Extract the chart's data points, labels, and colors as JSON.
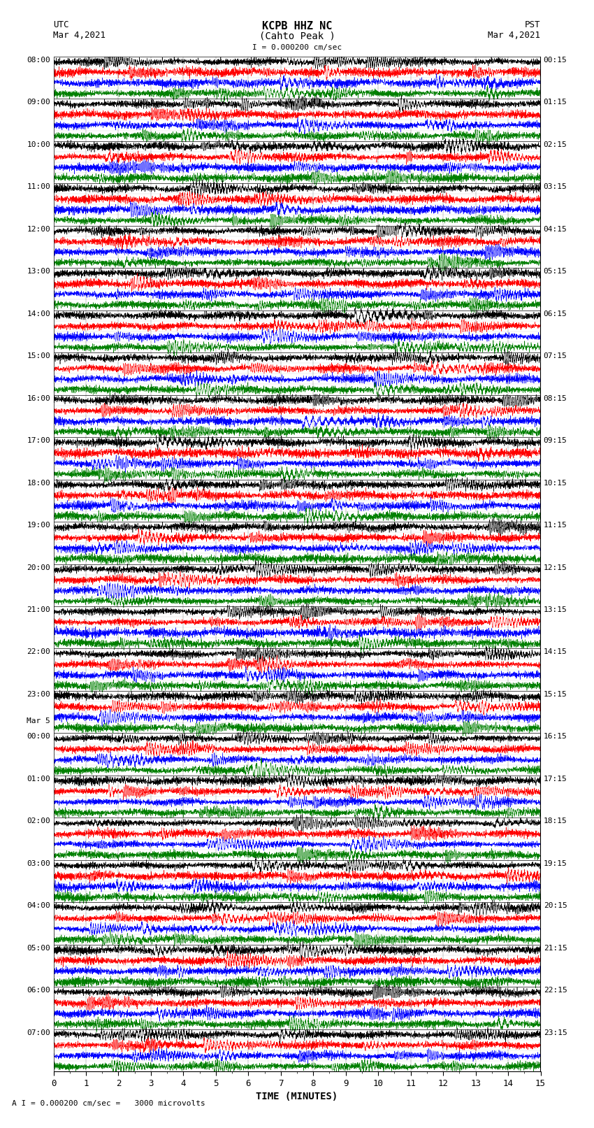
{
  "title_line1": "KCPB HHZ NC",
  "title_line2": "(Cahto Peak )",
  "scale_label": "I = 0.000200 cm/sec",
  "bottom_label": "A I = 0.000200 cm/sec =   3000 microvolts",
  "utc_label_line1": "UTC",
  "utc_label_line2": "Mar 4,2021",
  "pst_label_line1": "PST",
  "pst_label_line2": "Mar 4,2021",
  "xlabel": "TIME (MINUTES)",
  "utc_times_left": [
    "08:00",
    "09:00",
    "10:00",
    "11:00",
    "12:00",
    "13:00",
    "14:00",
    "15:00",
    "16:00",
    "17:00",
    "18:00",
    "19:00",
    "20:00",
    "21:00",
    "22:00",
    "23:00",
    "00:00",
    "01:00",
    "02:00",
    "03:00",
    "04:00",
    "05:00",
    "06:00",
    "07:00"
  ],
  "mar5_row": 16,
  "pst_times_right": [
    "00:15",
    "01:15",
    "02:15",
    "03:15",
    "04:15",
    "05:15",
    "06:15",
    "07:15",
    "08:15",
    "09:15",
    "10:15",
    "11:15",
    "12:15",
    "13:15",
    "14:15",
    "15:15",
    "16:15",
    "17:15",
    "18:15",
    "19:15",
    "20:15",
    "21:15",
    "22:15",
    "23:15"
  ],
  "num_hours": 24,
  "sub_traces": 4,
  "minutes_per_trace": 15,
  "sub_colors": [
    "black",
    "red",
    "blue",
    "green"
  ],
  "xlim": [
    0,
    15
  ],
  "xticks": [
    0,
    1,
    2,
    3,
    4,
    5,
    6,
    7,
    8,
    9,
    10,
    11,
    12,
    13,
    14,
    15
  ],
  "figsize": [
    8.5,
    16.13
  ],
  "dpi": 100
}
